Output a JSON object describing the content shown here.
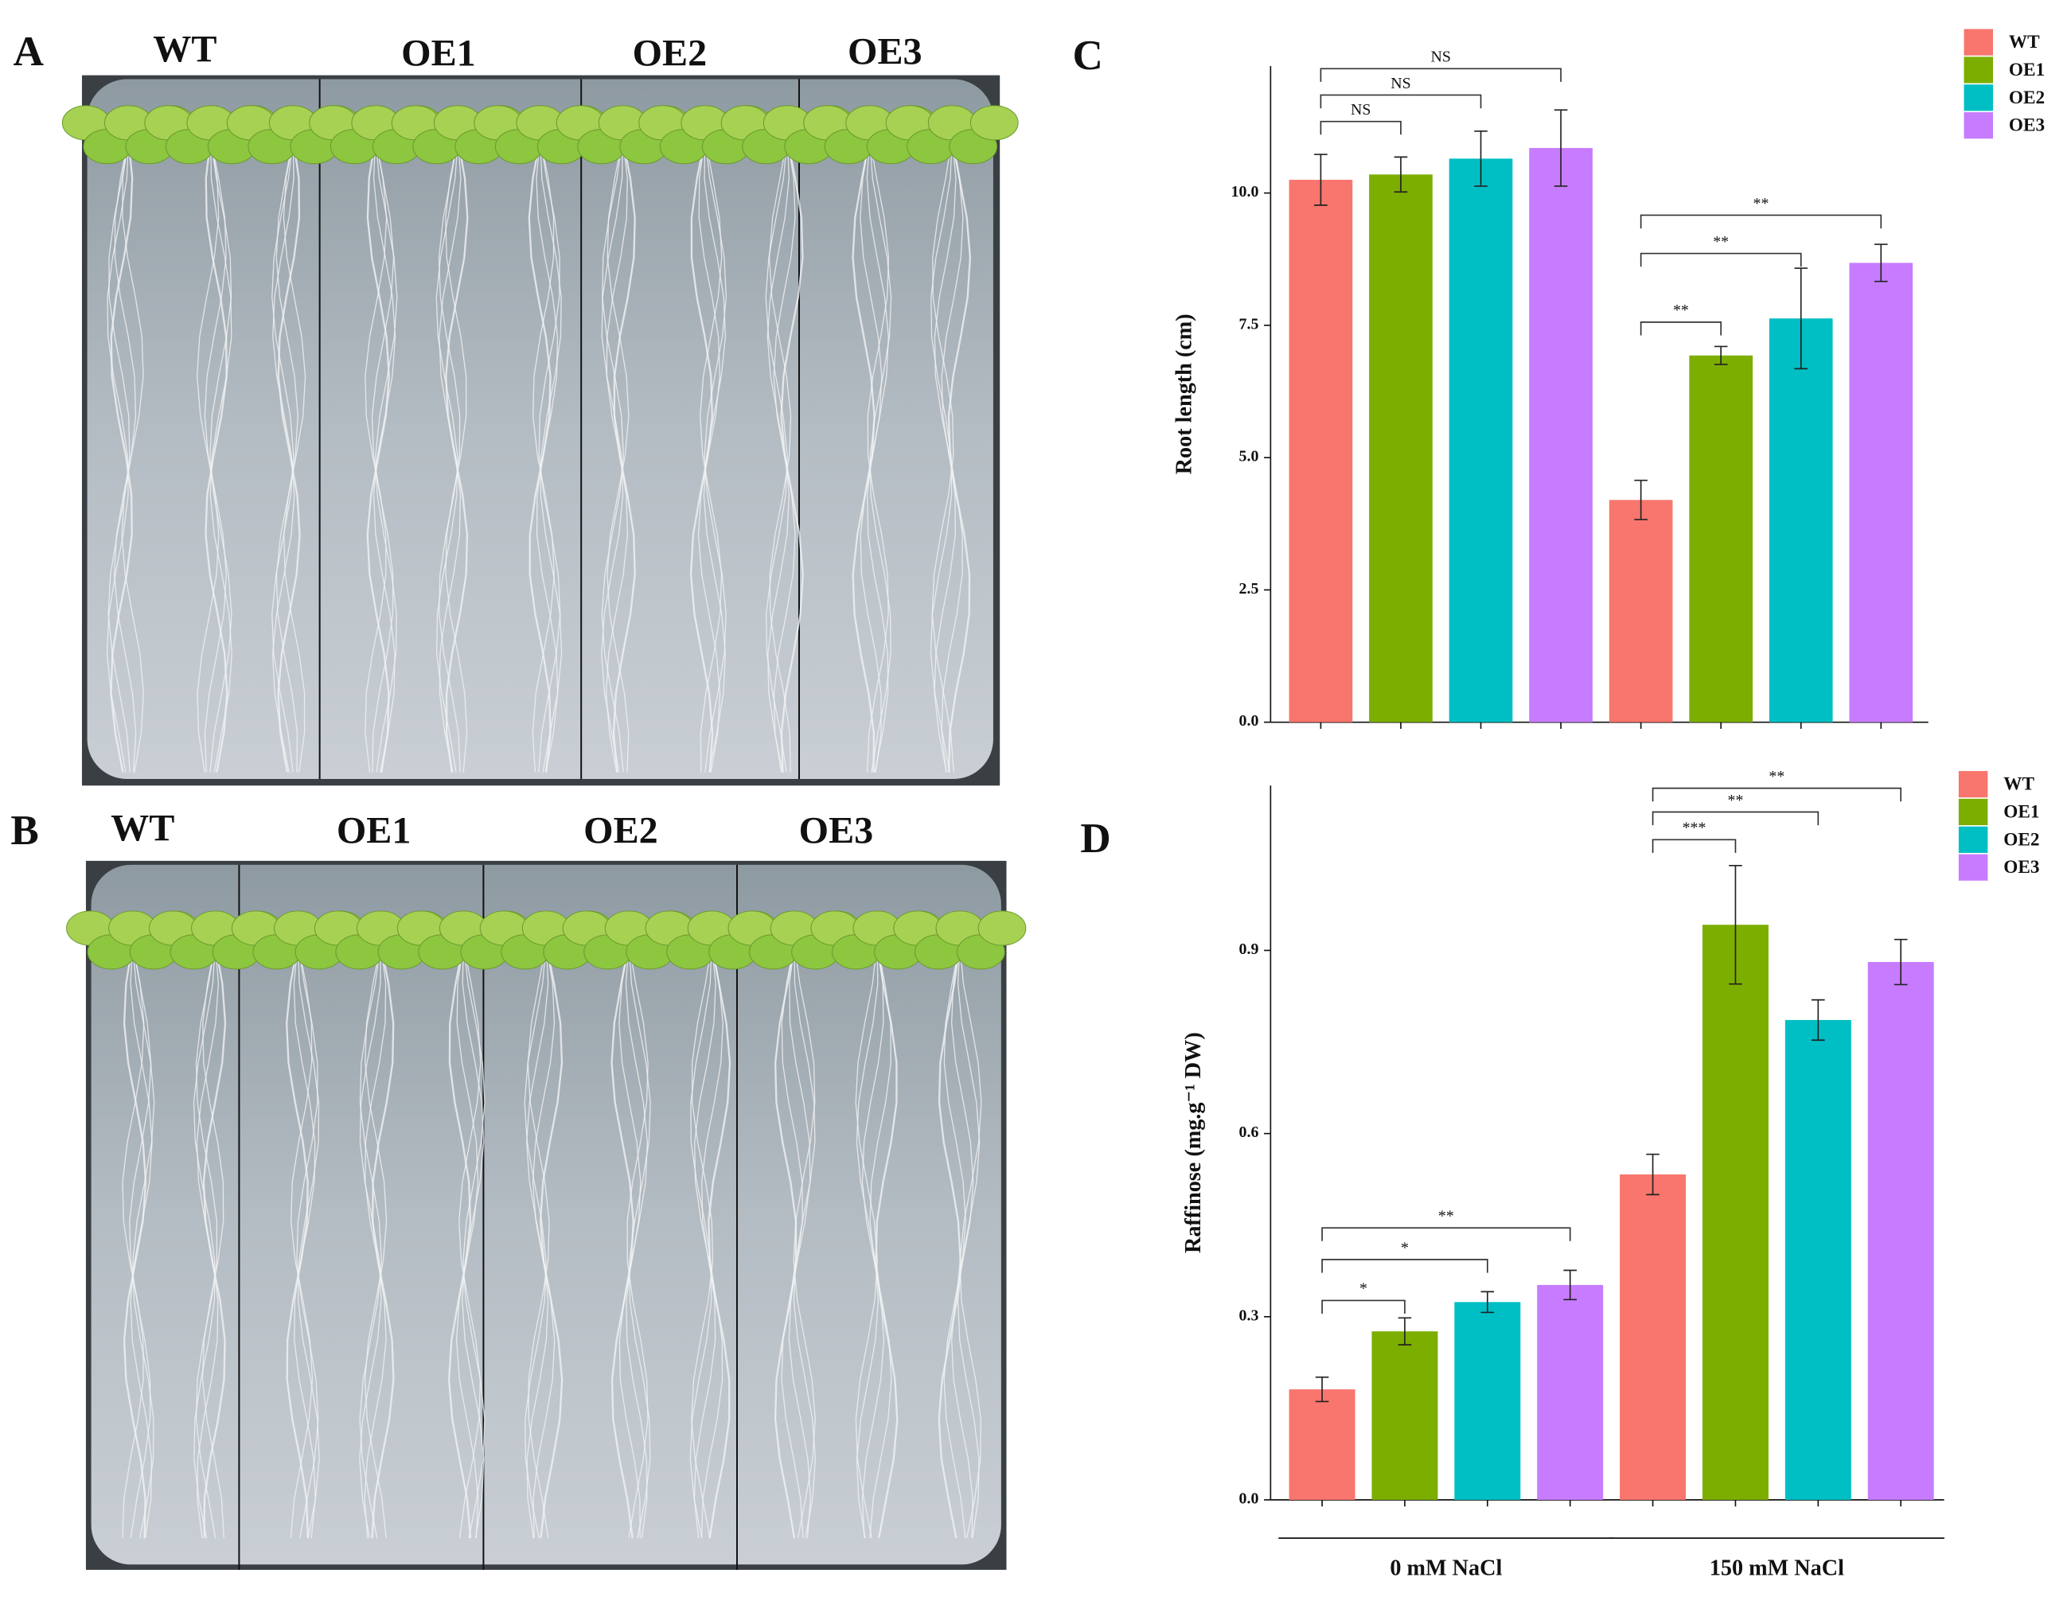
{
  "panel_a": {
    "letter": "A",
    "labels": [
      "WT",
      "OE1",
      "OE2",
      "OE3"
    ]
  },
  "panel_b": {
    "letter": "B",
    "labels": [
      "WT",
      "OE1",
      "OE2",
      "OE3"
    ]
  },
  "chart_data": [
    {
      "type": "bar",
      "panel_label": "C",
      "y_label": "Root length (cm)",
      "categories": [
        null,
        null
      ],
      "series": [
        {
          "name": "WT",
          "color": "#f8766d",
          "values": [
            10.25,
            4.2
          ],
          "errors": [
            0.48,
            0.37
          ]
        },
        {
          "name": "OE1",
          "color": "#7cae00",
          "values": [
            10.35,
            6.93
          ],
          "errors": [
            0.33,
            0.17
          ]
        },
        {
          "name": "OE2",
          "color": "#00bfc4",
          "values": [
            10.65,
            7.63
          ],
          "errors": [
            0.52,
            0.95
          ]
        },
        {
          "name": "OE3",
          "color": "#c77cff",
          "values": [
            10.85,
            8.68
          ],
          "errors": [
            0.72,
            0.35
          ]
        }
      ],
      "significance": [
        [
          "NS",
          "NS",
          "NS"
        ],
        [
          "**",
          "**",
          "**"
        ]
      ],
      "ylim": [
        0,
        12.4
      ],
      "yticks": [
        {
          "value": 0,
          "label": "0.0"
        },
        {
          "value": 2.5,
          "label": "2.5"
        },
        {
          "value": 5,
          "label": "5.0"
        },
        {
          "value": 7.5,
          "label": "7.5"
        },
        {
          "value": 10,
          "label": "10.0"
        }
      ],
      "legend": "top-right"
    },
    {
      "type": "bar",
      "panel_label": "D",
      "y_label": "Raffinose (mg.g⁻¹ DW)",
      "categories": [
        "0 mM NaCl",
        "150 mM NaCl"
      ],
      "series": [
        {
          "name": "WT",
          "color": "#f8766d",
          "values": [
            0.181,
            0.533
          ],
          "errors": [
            0.02,
            0.033
          ]
        },
        {
          "name": "OE1",
          "color": "#7cae00",
          "values": [
            0.276,
            0.942
          ],
          "errors": [
            0.022,
            0.097
          ]
        },
        {
          "name": "OE2",
          "color": "#00bfc4",
          "values": [
            0.324,
            0.786
          ],
          "errors": [
            0.017,
            0.033
          ]
        },
        {
          "name": "OE3",
          "color": "#c77cff",
          "values": [
            0.352,
            0.881
          ],
          "errors": [
            0.024,
            0.037
          ]
        }
      ],
      "significance": [
        [
          "*",
          "*",
          "**"
        ],
        [
          "***",
          "**",
          "**"
        ]
      ],
      "ylim": [
        0,
        1.17
      ],
      "yticks": [
        {
          "value": 0,
          "label": "0.0"
        },
        {
          "value": 0.3,
          "label": "0.3"
        },
        {
          "value": 0.6,
          "label": "0.6"
        },
        {
          "value": 0.9,
          "label": "0.9"
        }
      ],
      "legend": "top-right"
    }
  ]
}
